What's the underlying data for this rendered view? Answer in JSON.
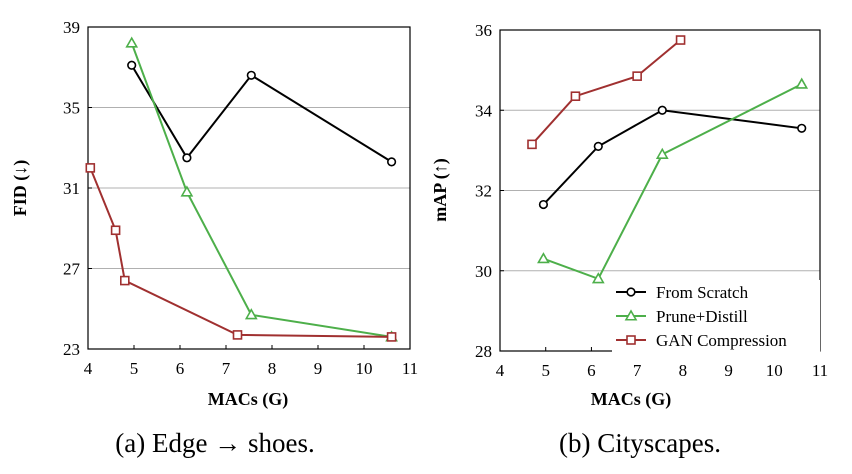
{
  "chart_data": [
    {
      "type": "line",
      "caption": "(a) Edge → shoes.",
      "xlabel": "MACs (G)",
      "ylabel": "FID (↓)",
      "xlim": [
        4,
        11
      ],
      "ylim": [
        23,
        39
      ],
      "xticks": [
        4,
        5,
        6,
        7,
        8,
        9,
        10,
        11
      ],
      "yticks": [
        23,
        27,
        31,
        35,
        39
      ],
      "grid": "horizontal",
      "series": [
        {
          "name": "From Scratch",
          "color": "#000000",
          "marker": "circle",
          "x": [
            4.95,
            6.15,
            7.55,
            10.6
          ],
          "y": [
            37.1,
            32.5,
            36.6,
            32.3
          ]
        },
        {
          "name": "Prune+Distill",
          "color": "#4daf4a",
          "marker": "triangle",
          "x": [
            4.95,
            6.15,
            7.55,
            10.6
          ],
          "y": [
            38.2,
            30.8,
            24.7,
            23.6
          ]
        },
        {
          "name": "GAN Compression",
          "color": "#a03030",
          "marker": "square",
          "x": [
            4.05,
            4.6,
            4.8,
            7.25,
            10.6
          ],
          "y": [
            32.0,
            28.9,
            26.4,
            23.7,
            23.6
          ]
        }
      ]
    },
    {
      "type": "line",
      "caption": "(b) Cityscapes.",
      "xlabel": "MACs (G)",
      "ylabel": "mAP (↑)",
      "xlim": [
        4,
        11
      ],
      "ylim": [
        28,
        36
      ],
      "xticks": [
        4,
        5,
        6,
        7,
        8,
        9,
        10,
        11
      ],
      "yticks": [
        28,
        30,
        32,
        34,
        36
      ],
      "grid": "horizontal",
      "legend_position": "bottom-right",
      "series": [
        {
          "name": "From Scratch",
          "color": "#000000",
          "marker": "circle",
          "x": [
            4.95,
            6.15,
            7.55,
            10.6
          ],
          "y": [
            31.65,
            33.1,
            34.0,
            33.55
          ]
        },
        {
          "name": "Prune+Distill",
          "color": "#4daf4a",
          "marker": "triangle",
          "x": [
            4.95,
            6.15,
            7.55,
            10.6
          ],
          "y": [
            30.3,
            29.8,
            32.9,
            34.65
          ]
        },
        {
          "name": "GAN Compression",
          "color": "#a03030",
          "marker": "square",
          "x": [
            4.7,
            5.65,
            7.0,
            7.95
          ],
          "y": [
            33.15,
            34.35,
            34.85,
            35.75
          ]
        }
      ]
    }
  ]
}
